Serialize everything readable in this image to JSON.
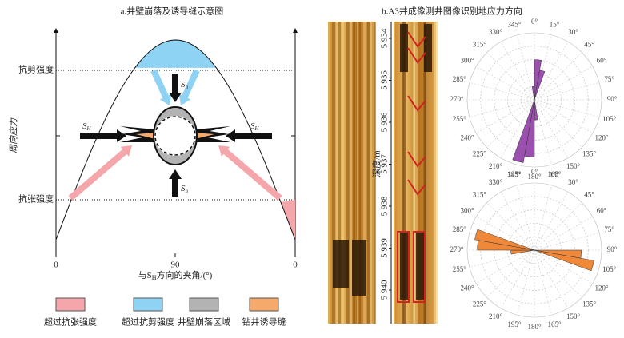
{
  "panel_a": {
    "title": "a.井壁崩落及诱导缝示意图",
    "y_label": "周向应力",
    "shear_strength": "抗剪强度",
    "tensile_strength": "抗张强度",
    "x_ticks": [
      "0",
      "90",
      "0"
    ],
    "x_label": {
      "pre": "与S",
      "sub": "H",
      "post": "方向的夹角/(°)"
    },
    "stress": {
      "S": "S",
      "H": "H",
      "h": "h"
    }
  },
  "legend": [
    {
      "label": "超过抗张强度",
      "color": "#f4a6ab"
    },
    {
      "label": "超过抗剪强度",
      "color": "#8fd3f4"
    },
    {
      "label": "井壁崩落区域",
      "color": "#b3b3b3"
    },
    {
      "label": "钻井诱导缝",
      "color": "#f5a96a"
    }
  ],
  "panel_b": {
    "title": "b.A3井成像测井图像识别地应力方向",
    "depth_label": "深度/m",
    "depths": [
      "5 934",
      "5 935",
      "5 936",
      "5 937",
      "5 938",
      "5 939",
      "5 940"
    ],
    "roses": [
      {
        "color": "#9b4fae",
        "angles": [
          "0°",
          "15°",
          "30°",
          "45°",
          "60°",
          "75°",
          "90°",
          "105°",
          "120°",
          "135°",
          "150°",
          "165°",
          "180°",
          "195°",
          "210°",
          "225°",
          "240°",
          "255°",
          "270°",
          "285°",
          "300°",
          "315°",
          "330°",
          "345°"
        ],
        "petals": [
          {
            "from": 0,
            "to": 10,
            "value": 0.6
          },
          {
            "from": 10,
            "to": 20,
            "value": 0.45
          },
          {
            "from": 350,
            "to": 360,
            "value": 0.2
          },
          {
            "from": 170,
            "to": 180,
            "value": 0.3
          },
          {
            "from": 180,
            "to": 190,
            "value": 0.85
          },
          {
            "from": 190,
            "to": 200,
            "value": 0.95
          }
        ]
      },
      {
        "color": "#f0883a",
        "angles": [
          "0°",
          "15°",
          "30°",
          "45°",
          "60°",
          "75°",
          "90°",
          "105°",
          "120°",
          "135°",
          "150°",
          "165°",
          "180°",
          "195°",
          "210°",
          "225°",
          "240°",
          "255°",
          "270°",
          "285°",
          "300°",
          "315°",
          "330°",
          "345°"
        ],
        "petals": [
          {
            "from": 90,
            "to": 100,
            "value": 0.7
          },
          {
            "from": 100,
            "to": 110,
            "value": 0.9
          },
          {
            "from": 260,
            "to": 270,
            "value": 0.35
          },
          {
            "from": 270,
            "to": 280,
            "value": 0.85
          },
          {
            "from": 280,
            "to": 290,
            "value": 0.9
          }
        ]
      }
    ]
  }
}
